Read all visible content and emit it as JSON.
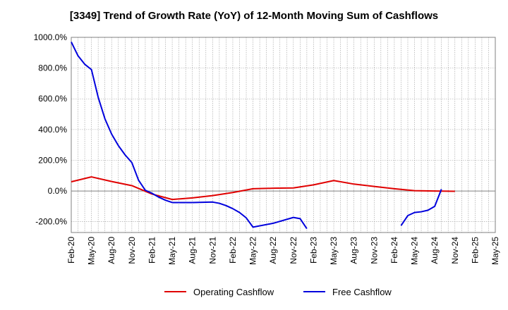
{
  "chart_data": {
    "type": "line",
    "title": "[3349]  Trend of Growth Rate (YoY) of 12-Month Moving Sum of Cashflows",
    "xlabel": "",
    "ylabel": "",
    "ylim": [
      -270,
      1000
    ],
    "yticks": [
      -200,
      0,
      200,
      400,
      600,
      800,
      1000
    ],
    "ytick_labels": [
      "-200.0%",
      "0.0%",
      "200.0%",
      "400.0%",
      "600.0%",
      "800.0%",
      "1000.0%"
    ],
    "x_start": "2020-02",
    "x_end": "2025-05",
    "xtick_labels": [
      "Feb-20",
      "May-20",
      "Aug-20",
      "Nov-20",
      "Feb-21",
      "May-21",
      "Aug-21",
      "Nov-21",
      "Feb-22",
      "May-22",
      "Aug-22",
      "Nov-22",
      "Feb-23",
      "May-23",
      "Aug-23",
      "Nov-23",
      "Feb-24",
      "May-24",
      "Aug-24",
      "Nov-24",
      "Feb-25",
      "May-25"
    ],
    "grid": true,
    "legend_position": "bottom",
    "series": [
      {
        "name": "Operating Cashflow",
        "color": "#e00000",
        "points": [
          [
            "2020-02",
            60
          ],
          [
            "2020-05",
            92
          ],
          [
            "2020-08",
            62
          ],
          [
            "2020-11",
            35
          ],
          [
            "2021-02",
            -20
          ],
          [
            "2021-05",
            -55
          ],
          [
            "2021-08",
            -45
          ],
          [
            "2021-11",
            -30
          ],
          [
            "2022-02",
            -10
          ],
          [
            "2022-05",
            15
          ],
          [
            "2022-08",
            18
          ],
          [
            "2022-11",
            20
          ],
          [
            "2023-02",
            40
          ],
          [
            "2023-05",
            68
          ],
          [
            "2023-08",
            45
          ],
          [
            "2023-11",
            30
          ],
          [
            "2024-02",
            15
          ],
          [
            "2024-05",
            2
          ],
          [
            "2024-08",
            0
          ],
          [
            "2024-11",
            -2
          ]
        ]
      },
      {
        "name": "Free Cashflow",
        "color": "#0000dd",
        "segments": [
          [
            [
              "2020-02",
              970
            ],
            [
              "2020-03",
              880
            ],
            [
              "2020-04",
              825
            ],
            [
              "2020-05",
              790
            ],
            [
              "2020-06",
              610
            ],
            [
              "2020-07",
              470
            ],
            [
              "2020-08",
              370
            ],
            [
              "2020-09",
              295
            ],
            [
              "2020-10",
              235
            ],
            [
              "2020-11",
              185
            ],
            [
              "2020-12",
              70
            ],
            [
              "2021-01",
              5
            ],
            [
              "2021-02",
              -15
            ],
            [
              "2021-03",
              -40
            ],
            [
              "2021-04",
              -60
            ],
            [
              "2021-05",
              -75
            ],
            [
              "2021-08",
              -75
            ],
            [
              "2021-11",
              -72
            ],
            [
              "2021-12",
              -80
            ],
            [
              "2022-01",
              -95
            ],
            [
              "2022-02",
              -115
            ],
            [
              "2022-03",
              -140
            ],
            [
              "2022-04",
              -175
            ],
            [
              "2022-05",
              -235
            ],
            [
              "2022-08",
              -210
            ],
            [
              "2022-11",
              -172
            ],
            [
              "2022-12",
              -180
            ],
            [
              "2023-01",
              -245
            ]
          ],
          [
            [
              "2024-03",
              -225
            ],
            [
              "2024-04",
              -160
            ],
            [
              "2024-05",
              -140
            ],
            [
              "2024-06",
              -135
            ],
            [
              "2024-07",
              -125
            ],
            [
              "2024-08",
              -100
            ],
            [
              "2024-09",
              12
            ]
          ]
        ]
      }
    ]
  }
}
